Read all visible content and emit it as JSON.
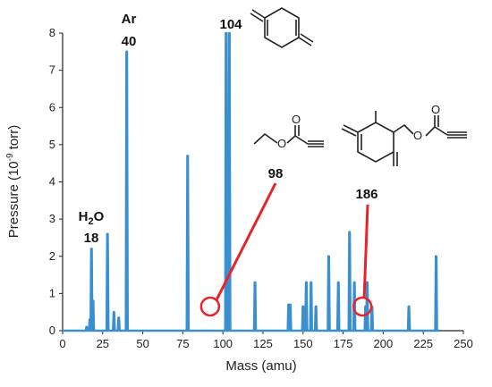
{
  "chart_data": {
    "type": "line",
    "xlabel": "Mass (amu)",
    "ylabel": "Pressure (10",
    "ylabel_sup": "-9",
    "ylabel_tail": " torr)",
    "xlim": [
      0,
      250
    ],
    "ylim": [
      0,
      8
    ],
    "xticks": [
      0,
      25,
      50,
      75,
      100,
      125,
      150,
      175,
      200,
      225,
      250
    ],
    "yticks": [
      0,
      1,
      2,
      3,
      4,
      5,
      6,
      7,
      8
    ],
    "grid": false,
    "line_color": "#3a8fd1",
    "highlight_color": "#e8232a",
    "peaks": [
      {
        "x": 15,
        "y": 0.1
      },
      {
        "x": 17,
        "y": 0.3
      },
      {
        "x": 18,
        "y": 2.2
      },
      {
        "x": 19,
        "y": 0.8
      },
      {
        "x": 28,
        "y": 2.6
      },
      {
        "x": 32,
        "y": 0.5
      },
      {
        "x": 35,
        "y": 0.35
      },
      {
        "x": 40,
        "y": 7.5
      },
      {
        "x": 78,
        "y": 4.7
      },
      {
        "x": 102,
        "y": 8.0
      },
      {
        "x": 104,
        "y": 8.0
      },
      {
        "x": 120,
        "y": 1.3
      },
      {
        "x": 141,
        "y": 0.7
      },
      {
        "x": 142,
        "y": 0.7
      },
      {
        "x": 150,
        "y": 0.65
      },
      {
        "x": 152,
        "y": 1.3
      },
      {
        "x": 155,
        "y": 1.3
      },
      {
        "x": 158,
        "y": 0.65
      },
      {
        "x": 166,
        "y": 2.0
      },
      {
        "x": 172,
        "y": 1.3
      },
      {
        "x": 179,
        "y": 2.65
      },
      {
        "x": 182,
        "y": 1.3
      },
      {
        "x": 189,
        "y": 0.65
      },
      {
        "x": 190,
        "y": 1.3
      },
      {
        "x": 193,
        "y": 0.65
      },
      {
        "x": 216,
        "y": 0.65
      },
      {
        "x": 233,
        "y": 2.0
      }
    ],
    "annotations": [
      {
        "label": "H",
        "sub": "2",
        "tail": "O",
        "value": "18"
      },
      {
        "label": "Ar",
        "value": "40"
      },
      {
        "value": "104"
      },
      {
        "value": "98",
        "marker_x": 92,
        "marker_y": 0.65
      },
      {
        "value": "186",
        "marker_x": 187,
        "marker_y": 0.65
      }
    ]
  }
}
